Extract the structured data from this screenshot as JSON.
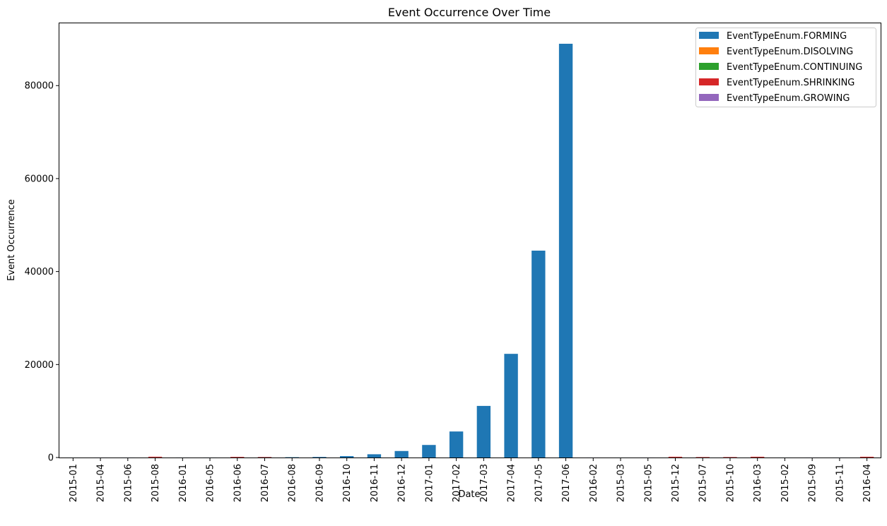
{
  "chart_data": {
    "type": "bar",
    "stacked": true,
    "title": "Event Occurrence Over Time",
    "xlabel": "Date",
    "ylabel": "Event Occurrence",
    "ylim": [
      0,
      93400
    ],
    "yticks": [
      0,
      20000,
      40000,
      60000,
      80000
    ],
    "grid": false,
    "legend_position": "top-right",
    "categories": [
      "2015-01",
      "2015-04",
      "2015-06",
      "2015-08",
      "2016-01",
      "2016-05",
      "2016-06",
      "2016-07",
      "2016-08",
      "2016-09",
      "2016-10",
      "2016-11",
      "2016-12",
      "2017-01",
      "2017-02",
      "2017-03",
      "2017-04",
      "2017-05",
      "2017-06",
      "2016-02",
      "2015-03",
      "2015-05",
      "2015-12",
      "2015-07",
      "2015-10",
      "2016-03",
      "2015-02",
      "2015-09",
      "2015-11",
      "2016-04"
    ],
    "series": [
      {
        "name": "EventTypeEnum.FORMING",
        "color": "#1f77b4",
        "values": [
          2,
          3,
          4,
          15,
          5,
          6,
          20,
          35,
          70,
          120,
          300,
          700,
          1400,
          2700,
          5600,
          11100,
          22300,
          44500,
          89000,
          3,
          2,
          3,
          8,
          5,
          6,
          8,
          2,
          3,
          4,
          6
        ]
      },
      {
        "name": "EventTypeEnum.DISOLVING",
        "color": "#ff7f0e",
        "values": [
          0,
          0,
          0,
          5,
          0,
          0,
          5,
          5,
          0,
          0,
          0,
          0,
          0,
          0,
          0,
          0,
          0,
          0,
          0,
          0,
          0,
          0,
          5,
          5,
          5,
          5,
          0,
          0,
          0,
          5
        ]
      },
      {
        "name": "EventTypeEnum.CONTINUING",
        "color": "#2ca02c",
        "values": [
          0,
          0,
          0,
          5,
          0,
          0,
          5,
          5,
          0,
          0,
          0,
          0,
          0,
          0,
          0,
          0,
          0,
          0,
          0,
          0,
          0,
          0,
          5,
          5,
          5,
          5,
          0,
          0,
          0,
          5
        ]
      },
      {
        "name": "EventTypeEnum.SHRINKING",
        "color": "#d62728",
        "values": [
          0,
          0,
          0,
          150,
          0,
          0,
          120,
          90,
          0,
          0,
          0,
          0,
          0,
          0,
          0,
          0,
          0,
          0,
          0,
          0,
          0,
          0,
          150,
          90,
          90,
          150,
          0,
          0,
          0,
          150
        ]
      },
      {
        "name": "EventTypeEnum.GROWING",
        "color": "#9467bd",
        "values": [
          0,
          0,
          0,
          5,
          0,
          0,
          5,
          5,
          0,
          0,
          0,
          0,
          0,
          0,
          0,
          0,
          0,
          0,
          0,
          0,
          0,
          0,
          5,
          5,
          5,
          5,
          0,
          0,
          0,
          5
        ]
      }
    ]
  }
}
